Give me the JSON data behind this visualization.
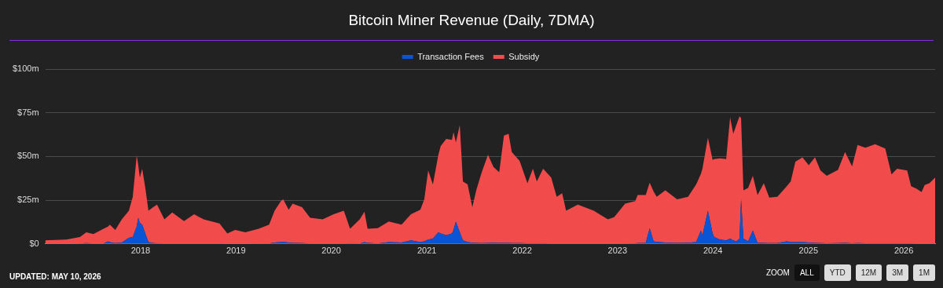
{
  "chart_data": {
    "type": "area",
    "title": "Bitcoin Miner Revenue (Daily, 7DMA)",
    "stacked": true,
    "legend": "top",
    "grid": "y",
    "x": [
      "2017-01-01",
      "2017-03-23",
      "2017-05-14",
      "2017-06-07",
      "2017-07-04",
      "2017-08-12",
      "2017-08-30",
      "2017-09-05",
      "2017-09-26",
      "2017-10-21",
      "2017-11-17",
      "2017-12-02",
      "2017-12-17",
      "2017-12-23",
      "2017-12-29",
      "2018-01-07",
      "2018-01-19",
      "2018-01-31",
      "2018-02-18",
      "2018-03-05",
      "2018-04-02",
      "2018-05-02",
      "2018-06-16",
      "2018-07-25",
      "2018-08-30",
      "2018-10-30",
      "2018-11-29",
      "2018-12-29",
      "2019-02-06",
      "2019-03-29",
      "2019-05-08",
      "2019-05-29",
      "2019-06-22",
      "2019-07-01",
      "2019-07-22",
      "2019-08-06",
      "2019-09-11",
      "2019-10-12",
      "2019-11-29",
      "2020-01-10",
      "2020-02-18",
      "2020-03-13",
      "2020-04-19",
      "2020-05-07",
      "2020-05-19",
      "2020-06-27",
      "2020-08-08",
      "2020-09-26",
      "2020-11-01",
      "2020-12-07",
      "2020-12-22",
      "2021-01-06",
      "2021-01-24",
      "2021-02-14",
      "2021-02-23",
      "2021-03-16",
      "2021-04-07",
      "2021-04-13",
      "2021-04-22",
      "2021-05-07",
      "2021-05-19",
      "2021-06-06",
      "2021-06-24",
      "2021-07-09",
      "2021-07-30",
      "2021-08-23",
      "2021-09-13",
      "2021-10-05",
      "2021-10-23",
      "2021-11-10",
      "2021-11-22",
      "2021-12-22",
      "2022-01-21",
      "2022-02-11",
      "2022-02-26",
      "2022-03-22",
      "2022-04-22",
      "2022-05-13",
      "2022-06-03",
      "2022-06-18",
      "2022-08-02",
      "2022-10-02",
      "2022-11-25",
      "2022-12-19",
      "2023-01-30",
      "2023-03-10",
      "2023-03-19",
      "2023-04-19",
      "2023-05-04",
      "2023-05-19",
      "2023-05-31",
      "2023-07-03",
      "2023-08-17",
      "2023-09-28",
      "2023-10-29",
      "2023-11-16",
      "2023-11-22",
      "2023-12-13",
      "2023-12-31",
      "2024-01-06",
      "2024-01-28",
      "2024-02-21",
      "2024-03-07",
      "2024-03-19",
      "2024-03-31",
      "2024-04-12",
      "2024-04-18",
      "2024-04-27",
      "2024-05-15",
      "2024-06-02",
      "2024-06-20",
      "2024-07-14",
      "2024-08-04",
      "2024-09-04",
      "2024-10-10",
      "2024-10-25",
      "2024-11-12",
      "2024-12-09",
      "2025-01-02",
      "2025-01-26",
      "2025-02-16",
      "2025-03-12",
      "2025-04-24",
      "2025-05-21",
      "2025-06-17",
      "2025-07-08",
      "2025-08-07",
      "2025-09-13",
      "2025-10-22",
      "2025-11-15",
      "2025-12-06",
      "2026-01-14",
      "2026-01-29",
      "2026-02-19",
      "2026-03-10",
      "2026-03-22",
      "2026-04-09",
      "2026-05-01"
    ],
    "series": [
      {
        "name": "Transaction Fees",
        "color": "#0a55d6",
        "values": [
          0.1,
          0.1,
          0.3,
          0.5,
          0.3,
          0.3,
          1.5,
          1,
          0.5,
          0.8,
          3.5,
          4,
          10,
          15,
          12,
          11,
          6,
          1,
          0.5,
          0.4,
          0.3,
          0.3,
          0.2,
          0.2,
          0.2,
          0.2,
          0.1,
          0.1,
          0.1,
          0.2,
          0.3,
          0.8,
          1,
          1.2,
          0.8,
          0.6,
          0.5,
          0.3,
          0.3,
          0.3,
          0.3,
          0.4,
          0.3,
          1,
          0.6,
          0.3,
          1,
          0.8,
          2,
          1,
          1.5,
          2.5,
          3,
          6.6,
          6,
          5,
          6,
          8,
          12.8,
          6.6,
          2,
          1,
          0.7,
          0.6,
          0.5,
          0.6,
          0.7,
          0.6,
          0.6,
          0.6,
          0.5,
          0.5,
          0.4,
          0.4,
          0.4,
          0.4,
          0.3,
          0.3,
          0.3,
          0.3,
          0.3,
          0.3,
          0.3,
          0.3,
          0.3,
          0.4,
          0.5,
          0.6,
          9,
          1.5,
          1.2,
          0.8,
          0.6,
          0.7,
          1,
          7.7,
          5,
          19,
          6,
          4,
          2.5,
          2,
          3,
          2,
          1.5,
          3,
          25.5,
          3,
          1.5,
          7.7,
          0.7,
          0.6,
          0.5,
          0.5,
          1.5,
          1,
          1,
          1,
          0.8,
          0.6,
          0.5,
          0.4,
          0.5,
          0.6,
          0.4,
          0.5,
          0.4,
          0.4,
          0.4,
          0.4,
          0.4,
          0.4,
          0.4,
          0.3,
          0.3,
          0.3,
          0.3,
          0.3
        ]
      },
      {
        "name": "Subsidy",
        "color": "#f24b4b",
        "values": [
          1.9,
          2.4,
          3.7,
          6.1,
          5.3,
          8.4,
          8.5,
          10,
          7.5,
          13.2,
          15.5,
          23,
          40.5,
          30,
          26,
          32,
          26,
          18,
          20.5,
          22.1,
          13.7,
          17.7,
          12.8,
          16.8,
          13.8,
          11.5,
          5.9,
          7.9,
          6.5,
          8.5,
          10.7,
          18.2,
          23.5,
          24.3,
          18.7,
          22.4,
          20.5,
          14.7,
          13.7,
          16.7,
          18.7,
          8.3,
          13.7,
          17.4,
          8.1,
          8.7,
          11.8,
          10.2,
          15,
          18.5,
          24,
          39.5,
          31,
          44.4,
          50,
          55,
          53.5,
          56,
          45.2,
          61.4,
          33.7,
          33,
          20.3,
          30,
          40.5,
          50.4,
          43.3,
          40.4,
          61.4,
          62.4,
          52,
          47,
          34.3,
          42.6,
          35.3,
          42.6,
          37.7,
          26.7,
          28.7,
          18.7,
          22.2,
          18.7,
          13.7,
          15,
          22.7,
          24.1,
          27.5,
          27.4,
          26,
          28.5,
          25.8,
          29.8,
          24.9,
          26.3,
          33,
          32.3,
          38,
          41.7,
          42,
          44.5,
          46.5,
          46.5,
          69.4,
          61,
          66.5,
          70,
          46.5,
          27.6,
          30.5,
          31.3,
          27.3,
          34.1,
          26,
          26.5,
          31.5,
          34.7,
          46,
          48.5,
          44.2,
          48.9,
          41.5,
          38.6,
          41.8,
          51.9,
          44,
          56.1,
          54.6,
          56.6,
          54.2,
          39.4,
          42.6,
          41.6,
          32.6,
          31.3,
          29.3,
          33.4,
          34.4,
          37.7
        ]
      }
    ],
    "xlim": [
      "2017-01-01",
      "2026-05-01"
    ],
    "xticks": [
      {
        "value": "2018-01-01",
        "label": "2018"
      },
      {
        "value": "2019-01-01",
        "label": "2019"
      },
      {
        "value": "2020-01-01",
        "label": "2020"
      },
      {
        "value": "2021-01-01",
        "label": "2021"
      },
      {
        "value": "2022-01-01",
        "label": "2022"
      },
      {
        "value": "2023-01-01",
        "label": "2023"
      },
      {
        "value": "2024-01-01",
        "label": "2024"
      },
      {
        "value": "2025-01-01",
        "label": "2025"
      },
      {
        "value": "2026-01-01",
        "label": "2026"
      }
    ],
    "ylim": [
      0,
      100
    ],
    "yticks": [
      {
        "value": 0,
        "label": "$0"
      },
      {
        "value": 25,
        "label": "$25m"
      },
      {
        "value": 50,
        "label": "$50m"
      },
      {
        "value": 75,
        "label": "$75m"
      },
      {
        "value": 100,
        "label": "$100m"
      }
    ],
    "annotations": [
      "UPDATED: MAY 10, 2026",
      "ZOOM",
      "ALL",
      "YTD",
      "12M",
      "3M",
      "1M"
    ]
  }
}
